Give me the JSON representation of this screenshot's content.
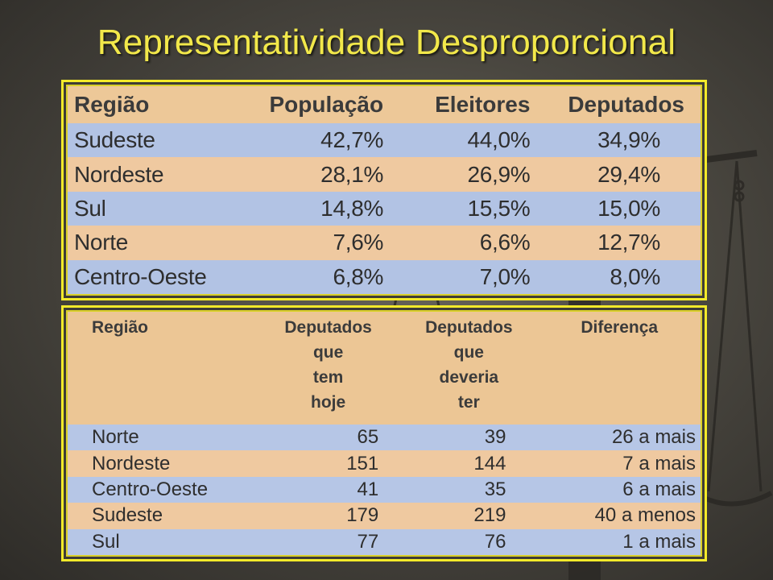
{
  "title": "Representatividade Desproporcional",
  "icons": {
    "background": "balance-scale-icon"
  },
  "colors": {
    "title": "#f2e84a",
    "frame": "#f3ea2a",
    "row_blue": "#b2c3e4",
    "row_peach": "#efc9a0"
  },
  "table1": {
    "headers": [
      "Região",
      "População",
      "Eleitores",
      "Deputados"
    ],
    "rows": [
      {
        "regiao": "Sudeste",
        "populacao": "42,7%",
        "eleitores": "44,0%",
        "deputados": "34,9%"
      },
      {
        "regiao": "Nordeste",
        "populacao": "28,1%",
        "eleitores": "26,9%",
        "deputados": "29,4%"
      },
      {
        "regiao": "Sul",
        "populacao": "14,8%",
        "eleitores": "15,5%",
        "deputados": "15,0%"
      },
      {
        "regiao": "Norte",
        "populacao": "7,6%",
        "eleitores": "6,6%",
        "deputados": "12,7%"
      },
      {
        "regiao": "Centro-Oeste",
        "populacao": "6,8%",
        "eleitores": "7,0%",
        "deputados": "8,0%"
      }
    ]
  },
  "table2": {
    "headers": {
      "regiao": "Região",
      "tem_lines": [
        "Deputados",
        "que",
        "tem",
        "hoje"
      ],
      "deveria_lines": [
        "Deputados",
        "que",
        "deveria",
        "ter"
      ],
      "diferenca": "Diferença"
    },
    "rows": [
      {
        "regiao": "Norte",
        "tem": "65",
        "deveria": "39",
        "diferenca": "26 a mais"
      },
      {
        "regiao": "Nordeste",
        "tem": "151",
        "deveria": "144",
        "diferenca": "7 a mais"
      },
      {
        "regiao": "Centro-Oeste",
        "tem": "41",
        "deveria": "35",
        "diferenca": "6 a mais"
      },
      {
        "regiao": "Sudeste",
        "tem": "179",
        "deveria": "219",
        "diferenca": "40 a menos"
      },
      {
        "regiao": "Sul",
        "tem": "77",
        "deveria": "76",
        "diferenca": "1 a mais"
      }
    ]
  }
}
